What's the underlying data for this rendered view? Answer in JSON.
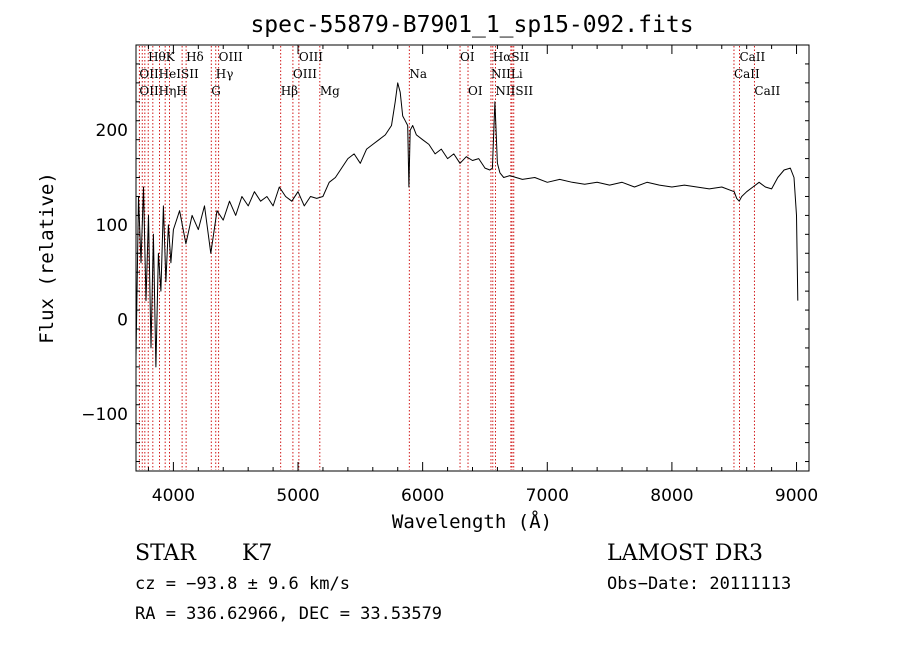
{
  "chart_data": {
    "type": "line",
    "title": "spec-55879-B7901_1_sp15-092.fits",
    "xlabel": "Wavelength (Å)",
    "ylabel": "Flux (relative)",
    "xlim": [
      3700,
      9100
    ],
    "ylim": [
      -160,
      290
    ],
    "xticks": [
      4000,
      5000,
      6000,
      7000,
      8000,
      9000
    ],
    "yticks": [
      -100,
      0,
      100,
      200
    ],
    "grid": false,
    "line_color": "#000000",
    "marker_color": "#cc0000",
    "series": [
      {
        "x": [
          3700,
          3720,
          3740,
          3760,
          3780,
          3800,
          3820,
          3840,
          3860,
          3880,
          3900,
          3920,
          3940,
          3960,
          3980,
          4000,
          4050,
          4100,
          4150,
          4200,
          4250,
          4300,
          4350,
          4400,
          4450,
          4500,
          4550,
          4600,
          4650,
          4700,
          4750,
          4800,
          4850,
          4900,
          4950,
          5000,
          5050,
          5100,
          5150,
          5200,
          5250,
          5300,
          5350,
          5400,
          5450,
          5500,
          5550,
          5600,
          5650,
          5700,
          5750,
          5780,
          5800,
          5820,
          5840,
          5860,
          5880,
          5890,
          5900,
          5920,
          5950,
          6000,
          6050,
          6100,
          6150,
          6200,
          6250,
          6300,
          6350,
          6400,
          6450,
          6500,
          6540,
          6560,
          6580,
          6600,
          6620,
          6650,
          6700,
          6750,
          6800,
          6900,
          7000,
          7100,
          7200,
          7300,
          7400,
          7500,
          7600,
          7700,
          7800,
          7900,
          8000,
          8100,
          8200,
          8300,
          8400,
          8500,
          8520,
          8540,
          8560,
          8600,
          8650,
          8700,
          8750,
          8800,
          8850,
          8900,
          8950,
          8980,
          9000,
          9010
        ],
        "y": [
          -40,
          130,
          60,
          140,
          20,
          110,
          -30,
          90,
          -50,
          70,
          30,
          120,
          40,
          100,
          60,
          95,
          115,
          80,
          110,
          95,
          120,
          70,
          115,
          105,
          125,
          110,
          130,
          120,
          135,
          125,
          130,
          120,
          140,
          130,
          125,
          135,
          120,
          130,
          128,
          130,
          145,
          150,
          160,
          170,
          175,
          165,
          180,
          185,
          190,
          195,
          205,
          230,
          250,
          240,
          215,
          210,
          205,
          140,
          200,
          205,
          195,
          190,
          185,
          175,
          180,
          170,
          175,
          165,
          172,
          168,
          170,
          160,
          158,
          160,
          230,
          165,
          155,
          150,
          152,
          150,
          148,
          150,
          145,
          148,
          145,
          143,
          145,
          142,
          145,
          140,
          145,
          142,
          140,
          142,
          140,
          138,
          140,
          135,
          128,
          125,
          130,
          135,
          140,
          145,
          140,
          138,
          150,
          158,
          160,
          150,
          110,
          20
        ]
      }
    ],
    "annotations": [
      {
        "text": "HθK",
        "x": 3797,
        "tier": 1
      },
      {
        "text": "Hδ",
        "x": 4102,
        "tier": 1
      },
      {
        "text": "OIII",
        "x": 4363,
        "tier": 1
      },
      {
        "text": "OIII",
        "x": 5007,
        "tier": 1
      },
      {
        "text": "OI",
        "x": 6300,
        "tier": 1
      },
      {
        "text": "HαSII",
        "x": 6563,
        "tier": 1
      },
      {
        "text": "CaII",
        "x": 8542,
        "tier": 1
      },
      {
        "text": "OIIHeISII",
        "x": 3727,
        "tier": 2
      },
      {
        "text": "Hγ",
        "x": 4340,
        "tier": 2
      },
      {
        "text": "OIII",
        "x": 4959,
        "tier": 2
      },
      {
        "text": "Na",
        "x": 5893,
        "tier": 2
      },
      {
        "text": "NIILi",
        "x": 6548,
        "tier": 2
      },
      {
        "text": "CaII",
        "x": 8498,
        "tier": 2
      },
      {
        "text": "OIIHηH",
        "x": 3727,
        "tier": 3
      },
      {
        "text": "G",
        "x": 4304,
        "tier": 3
      },
      {
        "text": "Hβ",
        "x": 4861,
        "tier": 3
      },
      {
        "text": "Mg",
        "x": 5175,
        "tier": 3
      },
      {
        "text": "OI",
        "x": 6364,
        "tier": 3
      },
      {
        "text": "NIISII",
        "x": 6584,
        "tier": 3
      },
      {
        "text": "CaII",
        "x": 8662,
        "tier": 3
      }
    ],
    "line_markers": [
      3727,
      3750,
      3771,
      3798,
      3835,
      3889,
      3934,
      3969,
      4070,
      4102,
      4304,
      4340,
      4363,
      4861,
      4959,
      5007,
      5175,
      5893,
      6300,
      6364,
      6548,
      6563,
      6584,
      6708,
      6717,
      6731,
      8498,
      8542,
      8662
    ]
  },
  "info": {
    "class": "STAR",
    "subclass": "K7",
    "cz": "cz = −93.8 ± 9.6 km/s",
    "coords": "RA = 336.62966, DEC =  33.53579",
    "survey": "LAMOST DR3",
    "obs_date": "Obs−Date: 20111113"
  }
}
